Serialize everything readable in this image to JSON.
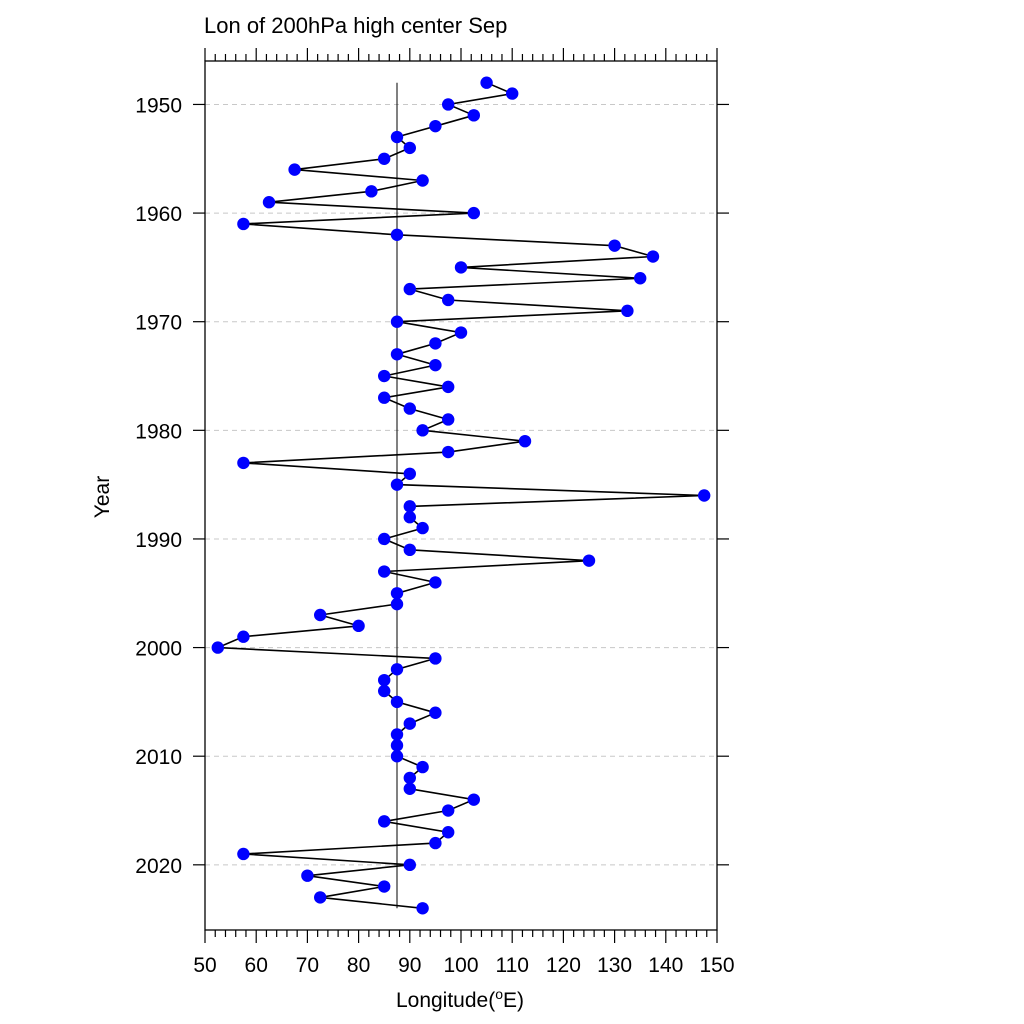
{
  "chart_data": {
    "type": "line",
    "title": "Lon of 200hPa high center Sep",
    "xlabel": "Longitude(oE)",
    "xlabel_parts": {
      "main": "Longitude(",
      "superscript": "o",
      "unit": "E)"
    },
    "ylabel": "Year",
    "xlim": [
      50,
      150
    ],
    "ylim": [
      1946,
      2026
    ],
    "y_inverted": true,
    "x_ticks": [
      50,
      60,
      70,
      80,
      90,
      100,
      110,
      120,
      130,
      140,
      150
    ],
    "y_ticks": [
      1950,
      1960,
      1970,
      1980,
      1990,
      2000,
      2010,
      2020
    ],
    "x_tick_labels": [
      "50",
      "60",
      "70",
      "80",
      "90",
      "100",
      "110",
      "120",
      "130",
      "140",
      "150"
    ],
    "y_tick_labels": [
      "1950",
      "1960",
      "1970",
      "1980",
      "1990",
      "2000",
      "2010",
      "2020"
    ],
    "grid": "horizontal dashed at major y ticks",
    "reference_line_x": 87.5,
    "colors": {
      "marker": "#0000ff",
      "line": "#000000",
      "grid": "#c8c8c8"
    },
    "series": [
      {
        "x": [
          1948,
          1949,
          1950,
          1951,
          1952,
          1953,
          1954,
          1955,
          1956,
          1957,
          1958,
          1959,
          1960,
          1961,
          1962,
          1963,
          1964,
          1965,
          1966,
          1967,
          1968,
          1969,
          1970,
          1971,
          1972,
          1973,
          1974,
          1975,
          1976,
          1977,
          1978,
          1979,
          1980,
          1981,
          1982,
          1983,
          1984,
          1985,
          1986,
          1987,
          1988,
          1989,
          1990,
          1991,
          1992,
          1993,
          1994,
          1995,
          1996,
          1997,
          1998,
          1999,
          2000,
          2001,
          2002,
          2003,
          2004,
          2005,
          2006,
          2007,
          2008,
          2009,
          2010,
          2011,
          2012,
          2013,
          2014,
          2015,
          2016,
          2017,
          2018,
          2019,
          2020,
          2021,
          2022,
          2023,
          2024
        ],
        "y": [
          105,
          110,
          97.5,
          102.5,
          95,
          87.5,
          90,
          85,
          67.5,
          92.5,
          82.5,
          62.5,
          102.5,
          57.5,
          87.5,
          130,
          137.5,
          100,
          135,
          90,
          97.5,
          132.5,
          87.5,
          100,
          95,
          87.5,
          95,
          85,
          97.5,
          85,
          90,
          97.5,
          92.5,
          112.5,
          97.5,
          57.5,
          90,
          87.5,
          147.5,
          90,
          90,
          92.5,
          85,
          90,
          125,
          85,
          95,
          87.5,
          87.5,
          72.5,
          80,
          57.5,
          52.5,
          95,
          87.5,
          85,
          85,
          87.5,
          95,
          90,
          87.5,
          87.5,
          87.5,
          92.5,
          90,
          90,
          102.5,
          97.5,
          85,
          97.5,
          95,
          57.5,
          90,
          70,
          85,
          72.5,
          92.5
        ]
      }
    ]
  }
}
